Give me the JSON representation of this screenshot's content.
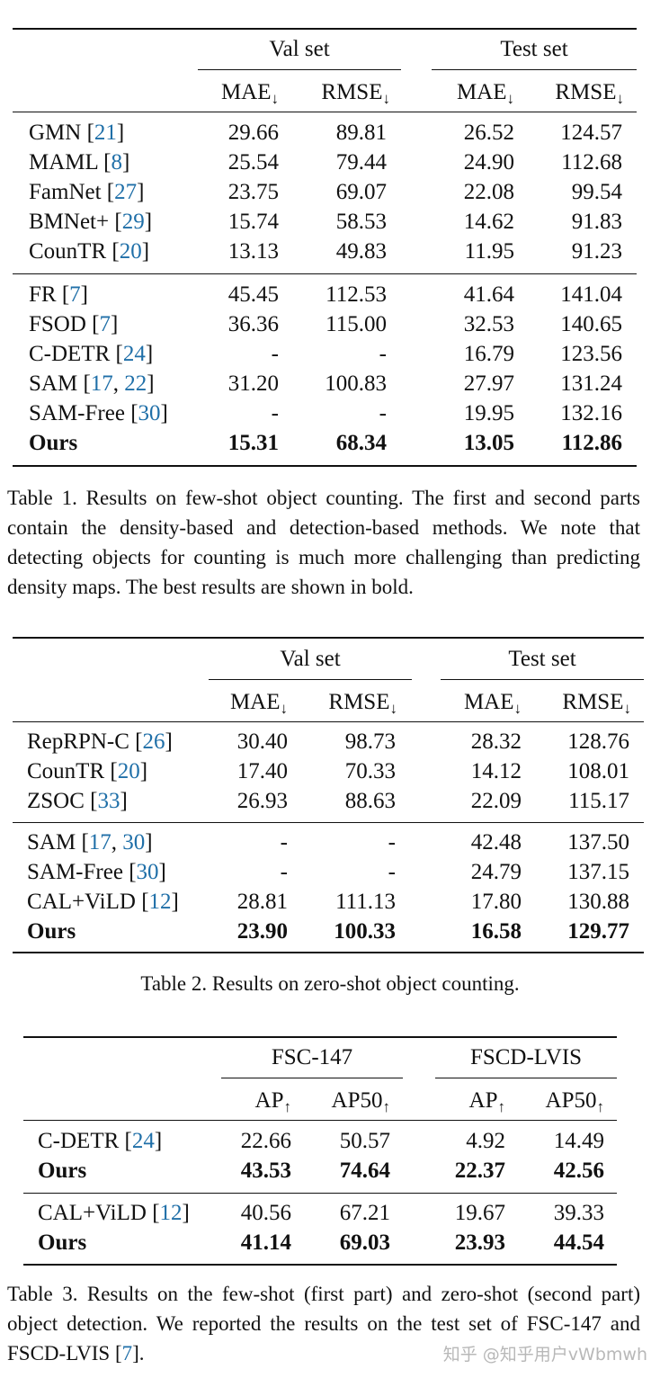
{
  "table1": {
    "groups": [
      "Val set",
      "Test set"
    ],
    "cols": [
      "MAE",
      "RMSE",
      "MAE",
      "RMSE"
    ],
    "arrow": "↓",
    "part1": [
      {
        "name": "GMN",
        "cite": "21",
        "vals": [
          "29.66",
          "89.81",
          "26.52",
          "124.57"
        ]
      },
      {
        "name": "MAML",
        "cite": "8",
        "vals": [
          "25.54",
          "79.44",
          "24.90",
          "112.68"
        ]
      },
      {
        "name": "FamNet",
        "cite": "27",
        "vals": [
          "23.75",
          "69.07",
          "22.08",
          "99.54"
        ]
      },
      {
        "name": "BMNet+",
        "cite": "29",
        "vals": [
          "15.74",
          "58.53",
          "14.62",
          "91.83"
        ]
      },
      {
        "name": "CounTR",
        "cite": "20",
        "vals": [
          "13.13",
          "49.83",
          "11.95",
          "91.23"
        ]
      }
    ],
    "part2": [
      {
        "name": "FR",
        "cite": "7",
        "vals": [
          "45.45",
          "112.53",
          "41.64",
          "141.04"
        ]
      },
      {
        "name": "FSOD",
        "cite": "7",
        "vals": [
          "36.36",
          "115.00",
          "32.53",
          "140.65"
        ]
      },
      {
        "name": "C-DETR",
        "cite": "24",
        "vals": [
          "-",
          "-",
          "16.79",
          "123.56"
        ]
      },
      {
        "name": "SAM",
        "cite": "17",
        "cite2": "22",
        "vals": [
          "31.20",
          "100.83",
          "27.97",
          "131.24"
        ]
      },
      {
        "name": "SAM-Free",
        "cite": "30",
        "vals": [
          "-",
          "-",
          "19.95",
          "132.16"
        ]
      },
      {
        "name": "Ours",
        "bold": true,
        "vals": [
          "15.31",
          "68.34",
          "13.05",
          "112.86"
        ]
      }
    ],
    "caption": "Table 1. Results on few-shot object counting. The first and second parts contain the density-based and detection-based methods. We note that detecting objects for counting is much more challenging than predicting density maps. The best results are shown in bold."
  },
  "table2": {
    "groups": [
      "Val set",
      "Test set"
    ],
    "cols": [
      "MAE",
      "RMSE",
      "MAE",
      "RMSE"
    ],
    "arrow": "↓",
    "part1": [
      {
        "name": "RepRPN-C",
        "cite": "26",
        "vals": [
          "30.40",
          "98.73",
          "28.32",
          "128.76"
        ]
      },
      {
        "name": "CounTR",
        "cite": "20",
        "vals": [
          "17.40",
          "70.33",
          "14.12",
          "108.01"
        ]
      },
      {
        "name": "ZSOC",
        "cite": "33",
        "vals": [
          "26.93",
          "88.63",
          "22.09",
          "115.17"
        ]
      }
    ],
    "part2": [
      {
        "name": "SAM",
        "cite": "17",
        "cite2": "30",
        "vals": [
          "-",
          "-",
          "42.48",
          "137.50"
        ]
      },
      {
        "name": "SAM-Free",
        "cite": "30",
        "vals": [
          "-",
          "-",
          "24.79",
          "137.15"
        ]
      },
      {
        "name": "CAL+ViLD",
        "cite": "12",
        "vals": [
          "28.81",
          "111.13",
          "17.80",
          "130.88"
        ]
      },
      {
        "name": "Ours",
        "bold": true,
        "vals": [
          "23.90",
          "100.33",
          "16.58",
          "129.77"
        ]
      }
    ],
    "caption": "Table 2. Results on zero-shot object counting."
  },
  "table3": {
    "groups": [
      "FSC-147",
      "FSCD-LVIS"
    ],
    "cols": [
      "AP",
      "AP50",
      "AP",
      "AP50"
    ],
    "arrow": "↑",
    "part1": [
      {
        "name": "C-DETR",
        "cite": "24",
        "vals": [
          "22.66",
          "50.57",
          "4.92",
          "14.49"
        ]
      },
      {
        "name": "Ours",
        "bold": true,
        "vals": [
          "43.53",
          "74.64",
          "22.37",
          "42.56"
        ]
      }
    ],
    "part2": [
      {
        "name": "CAL+ViLD",
        "cite": "12",
        "vals": [
          "40.56",
          "67.21",
          "19.67",
          "39.33"
        ]
      },
      {
        "name": "Ours",
        "bold": true,
        "vals": [
          "41.14",
          "69.03",
          "23.93",
          "44.54"
        ]
      }
    ],
    "caption": "Table 3. Results on the few-shot (first part) and zero-shot (second part) object detection. We reported the results on the test set of FSC-147 and FSCD-LVIS [7]."
  },
  "watermark": "知乎 @知乎用户vWbmwh"
}
